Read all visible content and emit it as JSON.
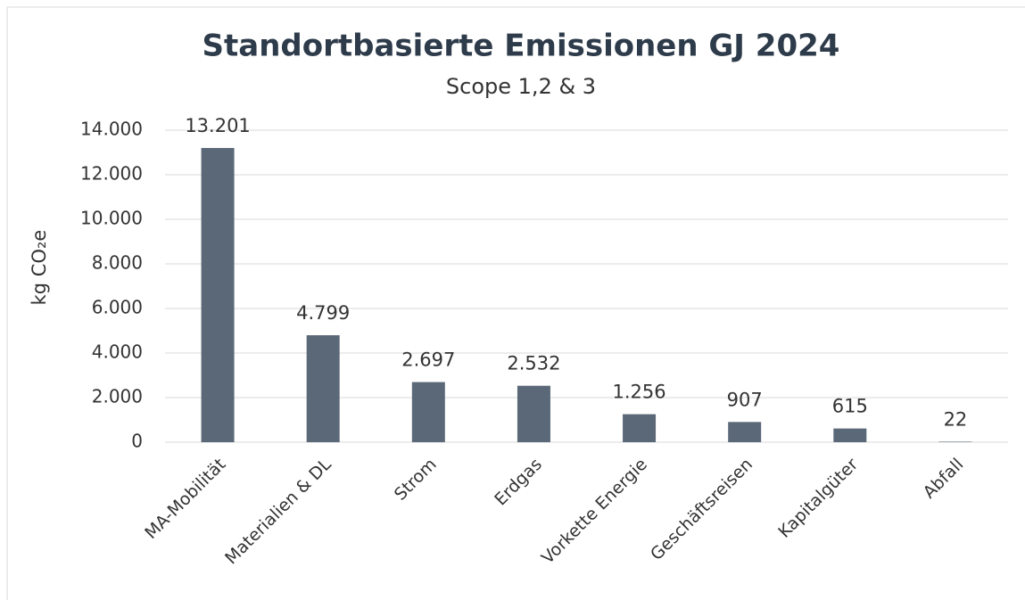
{
  "chart_data": {
    "type": "bar",
    "title": "Standortbasierte Emissionen GJ 2024",
    "subtitle": "Scope 1,2 & 3",
    "y_label": "kg CO₂e",
    "categories": [
      "MA-Mobilität",
      "Materialien & DL",
      "Strom",
      "Erdgas",
      "Vorkette Energie",
      "Geschäftsreisen",
      "Kapitalgüter",
      "Abfall"
    ],
    "values": [
      13201,
      4799,
      2697,
      2532,
      1256,
      907,
      615,
      22
    ],
    "value_labels": [
      "13.201",
      "4.799",
      "2.697",
      "2.532",
      "1.256",
      "907",
      "615",
      "22"
    ],
    "color": "#5b6878",
    "ylim": [
      0,
      14000
    ],
    "yticks": [
      0,
      {
        "value": 2000,
        "label": "2.000"
      },
      {
        "value": 4000,
        "label": "4.000"
      },
      {
        "value": 6000,
        "label": "6.000"
      },
      {
        "value": 8000,
        "label": "8.000"
      },
      {
        "value": 10000,
        "label": "10.000"
      },
      {
        "value": 12000,
        "label": "12.000"
      },
      {
        "value": 14000,
        "label": "14.000"
      }
    ],
    "grid": true
  }
}
